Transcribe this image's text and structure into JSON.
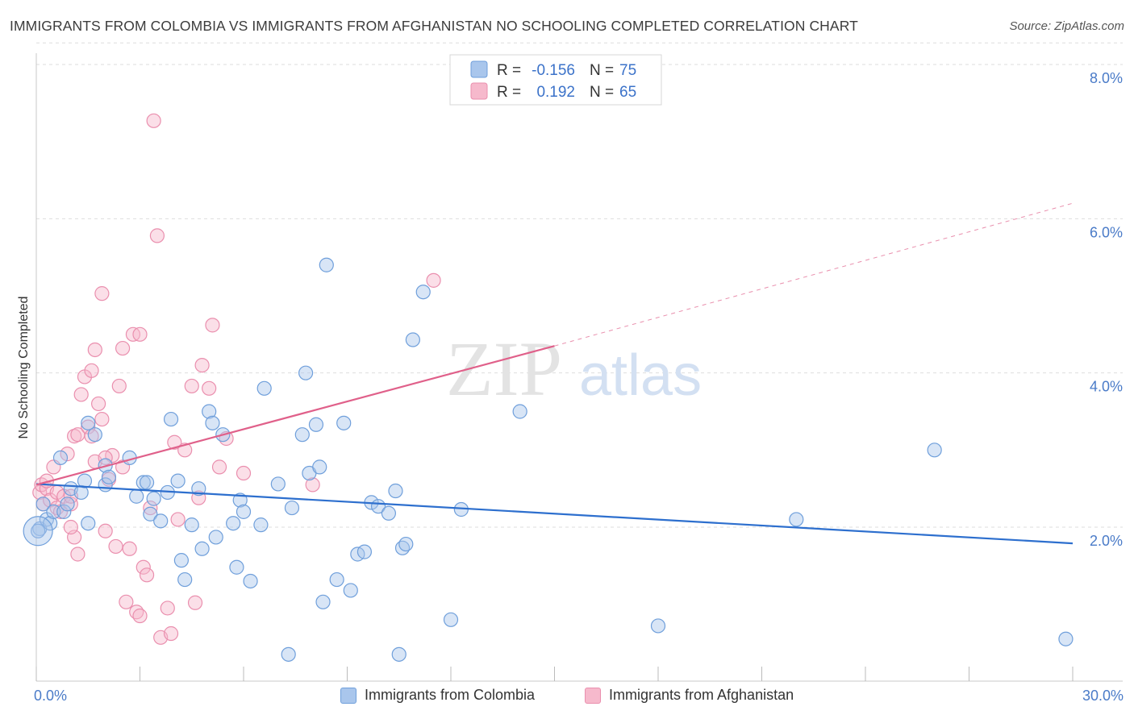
{
  "header": {
    "title": "IMMIGRANTS FROM COLOMBIA VS IMMIGRANTS FROM AFGHANISTAN NO SCHOOLING COMPLETED CORRELATION CHART",
    "source": "Source: ZipAtlas.com"
  },
  "watermark": {
    "zip": "ZIP",
    "atlas": "atlas"
  },
  "legend": {
    "rows": [
      {
        "r_label": "R =",
        "r_value": "-0.156",
        "n_label": "N =",
        "n_value": "75"
      },
      {
        "r_label": "R =",
        "r_value": "0.192",
        "n_label": "N =",
        "n_value": "65"
      }
    ]
  },
  "bottom_legend": {
    "colombia": "Immigrants from Colombia",
    "afghanistan": "Immigrants from Afghanistan"
  },
  "colors": {
    "blue_fill": "#a9c6ec",
    "blue_stroke": "#6f9fdb",
    "blue_line": "#2d6fce",
    "pink_fill": "#f6b9cc",
    "pink_stroke": "#ea8fae",
    "pink_line": "#e0608a",
    "axis_value": "#4a7bc8",
    "grid": "#dddddd"
  },
  "chart_data": {
    "type": "scatter",
    "ylabel": "No Schooling Completed",
    "xlim": [
      0,
      30
    ],
    "ylim": [
      0,
      8.3
    ],
    "x_tick_labels": [
      {
        "value": 0,
        "label": "0.0%"
      },
      {
        "value": 30,
        "label": "30.0%"
      }
    ],
    "y_tick_labels": [
      {
        "value": 2,
        "label": "2.0%"
      },
      {
        "value": 4,
        "label": "4.0%"
      },
      {
        "value": 6,
        "label": "6.0%"
      },
      {
        "value": 8,
        "label": "8.0%"
      }
    ],
    "x_minor_ticks": [
      0,
      3,
      6,
      9,
      12,
      15,
      18,
      21,
      24,
      27,
      30
    ],
    "grid": true,
    "series": [
      {
        "name": "Immigrants from Colombia",
        "color": "#a9c6ec",
        "trend": {
          "x0": 0,
          "y0": 2.56,
          "x1": 30,
          "y1": 1.79
        },
        "points": [
          [
            0.1,
            1.98
          ],
          [
            0.2,
            2.3
          ],
          [
            0.3,
            2.1
          ],
          [
            0.4,
            2.05
          ],
          [
            0.5,
            2.2
          ],
          [
            0.7,
            2.9
          ],
          [
            0.8,
            2.2
          ],
          [
            0.9,
            2.3
          ],
          [
            1.0,
            2.5
          ],
          [
            1.3,
            2.45
          ],
          [
            1.4,
            2.6
          ],
          [
            1.5,
            2.05
          ],
          [
            1.5,
            3.35
          ],
          [
            1.7,
            3.2
          ],
          [
            2.0,
            2.55
          ],
          [
            2.0,
            2.8
          ],
          [
            2.1,
            2.65
          ],
          [
            2.7,
            2.9
          ],
          [
            2.9,
            2.4
          ],
          [
            3.1,
            2.58
          ],
          [
            3.2,
            2.58
          ],
          [
            3.3,
            2.17
          ],
          [
            3.4,
            2.37
          ],
          [
            3.6,
            2.08
          ],
          [
            3.8,
            2.45
          ],
          [
            3.9,
            3.4
          ],
          [
            4.1,
            2.6
          ],
          [
            4.2,
            1.57
          ],
          [
            4.3,
            1.32
          ],
          [
            4.5,
            2.03
          ],
          [
            4.7,
            2.5
          ],
          [
            4.8,
            1.72
          ],
          [
            5.0,
            3.5
          ],
          [
            5.1,
            3.35
          ],
          [
            5.2,
            1.87
          ],
          [
            5.4,
            3.2
          ],
          [
            5.7,
            2.05
          ],
          [
            5.8,
            1.48
          ],
          [
            5.9,
            2.35
          ],
          [
            6.0,
            2.2
          ],
          [
            6.2,
            1.3
          ],
          [
            6.5,
            2.03
          ],
          [
            6.6,
            3.8
          ],
          [
            7.0,
            2.56
          ],
          [
            7.3,
            0.35
          ],
          [
            7.4,
            2.25
          ],
          [
            7.7,
            3.2
          ],
          [
            7.8,
            4.0
          ],
          [
            7.9,
            2.7
          ],
          [
            8.1,
            3.33
          ],
          [
            8.2,
            2.78
          ],
          [
            8.3,
            1.03
          ],
          [
            8.4,
            5.4
          ],
          [
            8.7,
            1.32
          ],
          [
            8.9,
            3.35
          ],
          [
            9.1,
            1.18
          ],
          [
            9.3,
            1.65
          ],
          [
            9.5,
            1.68
          ],
          [
            9.7,
            2.32
          ],
          [
            9.9,
            2.27
          ],
          [
            10.2,
            2.18
          ],
          [
            10.4,
            2.47
          ],
          [
            10.5,
            0.35
          ],
          [
            10.6,
            1.73
          ],
          [
            10.7,
            1.78
          ],
          [
            10.9,
            4.43
          ],
          [
            11.2,
            5.05
          ],
          [
            12.0,
            0.8
          ],
          [
            12.3,
            2.23
          ],
          [
            14.0,
            3.5
          ],
          [
            18.0,
            0.72
          ],
          [
            22.0,
            2.1
          ],
          [
            26.0,
            3.0
          ],
          [
            29.8,
            0.55
          ],
          [
            0.05,
            1.95
          ]
        ]
      },
      {
        "name": "Immigrants from Afghanistan",
        "color": "#f6b9cc",
        "trend": {
          "x0": 0,
          "y0": 2.55,
          "x1": 15,
          "y1": 4.35,
          "dash_x1": 30,
          "dash_y1": 6.2
        },
        "points": [
          [
            0.1,
            2.45
          ],
          [
            0.15,
            2.55
          ],
          [
            0.2,
            2.3
          ],
          [
            0.3,
            2.5
          ],
          [
            0.4,
            2.35
          ],
          [
            0.5,
            2.78
          ],
          [
            0.6,
            2.45
          ],
          [
            0.6,
            2.25
          ],
          [
            0.7,
            2.2
          ],
          [
            0.8,
            2.4
          ],
          [
            0.9,
            2.95
          ],
          [
            1.0,
            2.3
          ],
          [
            1.0,
            2.4
          ],
          [
            1.1,
            3.18
          ],
          [
            1.1,
            1.87
          ],
          [
            1.2,
            3.2
          ],
          [
            1.2,
            1.65
          ],
          [
            1.3,
            3.72
          ],
          [
            1.4,
            3.95
          ],
          [
            1.5,
            3.3
          ],
          [
            1.6,
            3.18
          ],
          [
            1.6,
            4.03
          ],
          [
            1.7,
            2.85
          ],
          [
            1.7,
            4.3
          ],
          [
            1.8,
            3.6
          ],
          [
            1.9,
            5.03
          ],
          [
            1.9,
            3.4
          ],
          [
            2.0,
            1.95
          ],
          [
            2.1,
            2.62
          ],
          [
            2.2,
            2.93
          ],
          [
            2.3,
            1.75
          ],
          [
            2.4,
            3.83
          ],
          [
            2.5,
            2.78
          ],
          [
            2.5,
            4.32
          ],
          [
            2.6,
            1.03
          ],
          [
            2.7,
            1.72
          ],
          [
            2.8,
            4.5
          ],
          [
            2.9,
            0.9
          ],
          [
            3.0,
            0.85
          ],
          [
            3.0,
            4.5
          ],
          [
            3.1,
            1.48
          ],
          [
            3.2,
            1.38
          ],
          [
            3.3,
            2.25
          ],
          [
            3.4,
            7.27
          ],
          [
            3.5,
            5.78
          ],
          [
            3.6,
            0.57
          ],
          [
            3.8,
            0.95
          ],
          [
            3.9,
            0.62
          ],
          [
            4.0,
            3.1
          ],
          [
            4.1,
            2.1
          ],
          [
            4.3,
            3.0
          ],
          [
            4.5,
            3.83
          ],
          [
            4.6,
            1.02
          ],
          [
            4.7,
            2.38
          ],
          [
            4.8,
            4.1
          ],
          [
            5.0,
            3.8
          ],
          [
            5.1,
            4.62
          ],
          [
            5.3,
            2.78
          ],
          [
            5.5,
            3.15
          ],
          [
            6.0,
            2.7
          ],
          [
            8.0,
            2.55
          ],
          [
            11.5,
            5.2
          ],
          [
            0.3,
            2.6
          ],
          [
            1.0,
            2.0
          ],
          [
            2.0,
            2.9
          ]
        ]
      }
    ]
  }
}
